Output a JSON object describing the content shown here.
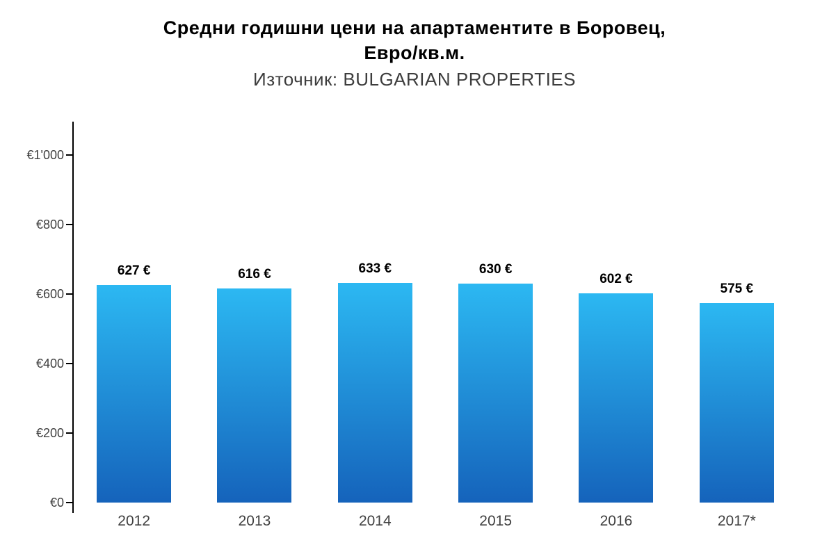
{
  "header": {
    "title_line1": "Средни годишни цени на апартаментите в Боровец,",
    "title_line2": "Евро/кв.м.",
    "subtitle": "Източник: BULGARIAN PROPERTIES"
  },
  "chart_data": {
    "type": "bar",
    "title": "Средни годишни цени на апартаментите в Боровец, Евро/кв.м.",
    "subtitle": "Източник: BULGARIAN PROPERTIES",
    "categories": [
      "2012",
      "2013",
      "2014",
      "2015",
      "2016",
      "2017*"
    ],
    "values": [
      627,
      616,
      633,
      630,
      602,
      575
    ],
    "value_labels": [
      "627 €",
      "616 €",
      "633 €",
      "630 €",
      "602 €",
      "575 €"
    ],
    "xlabel": "",
    "ylabel": "",
    "ylim": [
      0,
      1000
    ],
    "ytick_values": [
      0,
      200,
      400,
      600,
      800,
      1000
    ],
    "ytick_labels": [
      "€0",
      "€200",
      "€400",
      "€600",
      "€800",
      "€1'000"
    ],
    "grid": false,
    "legend": "none",
    "colors": {
      "bar_gradient_top": "#2cb8f2",
      "bar_gradient_bottom": "#1563bb",
      "axis": "#000000",
      "axis_label": "#404040",
      "value_label": "#000000",
      "background": "#ffffff"
    }
  }
}
